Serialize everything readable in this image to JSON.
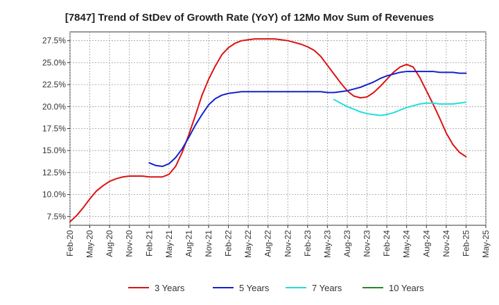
{
  "chart_data": {
    "type": "line",
    "title": "[7847]  Trend of StDev of Growth Rate (YoY) of 12Mo Mov Sum of Revenues",
    "xlabel": "",
    "ylabel": "",
    "ylim": [
      6.5,
      28.5
    ],
    "y_ticks": [
      7.5,
      10.0,
      12.5,
      15.0,
      17.5,
      20.0,
      22.5,
      25.0,
      27.5
    ],
    "y_tick_labels": [
      "7.5%",
      "10.0%",
      "12.5%",
      "15.0%",
      "17.5%",
      "20.0%",
      "22.5%",
      "25.0%",
      "27.5%"
    ],
    "x_tick_labels": [
      "Feb-20",
      "May-20",
      "Aug-20",
      "Nov-20",
      "Feb-21",
      "May-21",
      "Aug-21",
      "Nov-21",
      "Feb-22",
      "May-22",
      "Aug-22",
      "Nov-22",
      "Feb-23",
      "May-23",
      "Aug-23",
      "Nov-23",
      "Feb-24",
      "May-24",
      "Aug-24",
      "Nov-24",
      "Feb-25",
      "May-25"
    ],
    "grid": true,
    "legend_position": "bottom",
    "series": [
      {
        "name": "3 Years",
        "color": "#dd1111",
        "x": [
          0,
          1,
          2,
          3,
          4,
          5,
          6,
          7,
          8,
          9,
          10,
          11,
          12,
          13,
          14,
          15,
          16,
          17,
          18,
          19,
          20,
          21,
          22,
          23,
          24,
          25,
          26,
          27,
          28,
          29,
          30,
          31,
          32,
          33,
          34,
          35,
          36,
          37,
          38,
          39,
          40,
          41,
          42,
          43,
          44,
          45,
          46,
          47,
          48,
          49,
          50,
          51,
          52,
          53,
          54,
          55,
          56,
          57,
          58,
          59,
          60,
          61
        ],
        "values": [
          6.9,
          7.6,
          8.5,
          9.5,
          10.4,
          11.0,
          11.5,
          11.8,
          12.0,
          12.1,
          12.1,
          12.1,
          12.0,
          12.0,
          12.0,
          12.3,
          13.2,
          14.8,
          16.8,
          19.0,
          21.3,
          23.1,
          24.6,
          25.9,
          26.7,
          27.2,
          27.5,
          27.6,
          27.7,
          27.7,
          27.7,
          27.7,
          27.6,
          27.5,
          27.3,
          27.1,
          26.8,
          26.4,
          25.7,
          24.7,
          23.7,
          22.7,
          21.8,
          21.2,
          21.0,
          21.1,
          21.6,
          22.3,
          23.1,
          23.9,
          24.5,
          24.8,
          24.5,
          23.3,
          21.8,
          20.3,
          18.7,
          17.0,
          15.7,
          14.8,
          14.3,
          null
        ]
      },
      {
        "name": "5 Years",
        "color": "#1122cc",
        "x": [
          0,
          1,
          2,
          3,
          4,
          5,
          6,
          7,
          8,
          9,
          10,
          11,
          12,
          13,
          14,
          15,
          16,
          17,
          18,
          19,
          20,
          21,
          22,
          23,
          24,
          25,
          26,
          27,
          28,
          29,
          30,
          31,
          32,
          33,
          34,
          35,
          36,
          37,
          38,
          39,
          40,
          41,
          42,
          43,
          44,
          45,
          46,
          47,
          48,
          49,
          50,
          51,
          52,
          53,
          54,
          55,
          56,
          57,
          58,
          59,
          60,
          61
        ],
        "values": [
          null,
          null,
          null,
          null,
          null,
          null,
          null,
          null,
          null,
          null,
          null,
          null,
          13.6,
          13.3,
          13.2,
          13.5,
          14.2,
          15.2,
          16.5,
          17.9,
          19.1,
          20.2,
          20.9,
          21.3,
          21.5,
          21.6,
          21.7,
          21.7,
          21.7,
          21.7,
          21.7,
          21.7,
          21.7,
          21.7,
          21.7,
          21.7,
          21.7,
          21.7,
          21.7,
          21.6,
          21.6,
          21.7,
          21.8,
          22.0,
          22.2,
          22.5,
          22.8,
          23.2,
          23.5,
          23.7,
          23.9,
          24.0,
          24.0,
          24.0,
          24.0,
          24.0,
          23.9,
          23.9,
          23.9,
          23.8,
          23.8,
          null
        ]
      },
      {
        "name": "7 Years",
        "color": "#22dddd",
        "x": [
          0,
          1,
          2,
          3,
          4,
          5,
          6,
          7,
          8,
          9,
          10,
          11,
          12,
          13,
          14,
          15,
          16,
          17,
          18,
          19,
          20,
          21,
          22,
          23,
          24,
          25,
          26,
          27,
          28,
          29,
          30,
          31,
          32,
          33,
          34,
          35,
          36,
          37,
          38,
          39,
          40,
          41,
          42,
          43,
          44,
          45,
          46,
          47,
          48,
          49,
          50,
          51,
          52,
          53,
          54,
          55,
          56,
          57,
          58,
          59,
          60,
          61
        ],
        "values": [
          null,
          null,
          null,
          null,
          null,
          null,
          null,
          null,
          null,
          null,
          null,
          null,
          null,
          null,
          null,
          null,
          null,
          null,
          null,
          null,
          null,
          null,
          null,
          null,
          null,
          null,
          null,
          null,
          null,
          null,
          null,
          null,
          null,
          null,
          null,
          null,
          null,
          null,
          null,
          null,
          20.8,
          20.4,
          20.0,
          19.7,
          19.4,
          19.2,
          19.1,
          19.0,
          19.1,
          19.3,
          19.6,
          19.9,
          20.1,
          20.3,
          20.4,
          20.4,
          20.3,
          20.3,
          20.3,
          20.4,
          20.5,
          null
        ]
      },
      {
        "name": "10 Years",
        "color": "#228822",
        "x": [],
        "values": []
      }
    ]
  }
}
